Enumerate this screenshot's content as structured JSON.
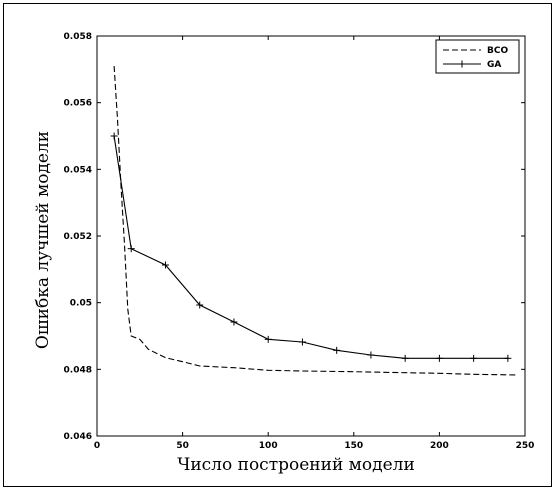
{
  "chart_data": {
    "type": "line",
    "title": "",
    "xlabel": "Число построений модели",
    "ylabel": "Ошибка лучшей модели",
    "xlim": [
      0,
      250
    ],
    "ylim": [
      0.046,
      0.058
    ],
    "xticks": [
      0,
      50,
      100,
      150,
      200,
      250
    ],
    "xtick_labels": [
      "0",
      "50",
      "100",
      "150",
      "200",
      "250"
    ],
    "yticks": [
      0.046,
      0.048,
      0.05,
      0.052,
      0.054,
      0.056,
      0.058
    ],
    "ytick_labels": [
      "0.046",
      "0.048",
      "0.05",
      "0.052",
      "0.054",
      "0.056",
      "0.058"
    ],
    "grid": false,
    "legend_position": "top-right",
    "series": [
      {
        "name": "BCO",
        "style": "dashed",
        "color": "#000000",
        "x": [
          10,
          12,
          14,
          16,
          18,
          20,
          25,
          30,
          40,
          50,
          60,
          80,
          100,
          120,
          150,
          180,
          200,
          220,
          245
        ],
        "y": [
          0.0571,
          0.0555,
          0.0535,
          0.0518,
          0.0498,
          0.049,
          0.0489,
          0.0486,
          0.04835,
          0.04823,
          0.0481,
          0.04805,
          0.04797,
          0.04795,
          0.04793,
          0.0479,
          0.04788,
          0.04785,
          0.04783
        ]
      },
      {
        "name": "GA",
        "style": "solid-plus",
        "color": "#000000",
        "x": [
          10,
          20,
          40,
          60,
          80,
          100,
          120,
          140,
          160,
          180,
          200,
          220,
          240
        ],
        "y": [
          0.055,
          0.05162,
          0.05113,
          0.04993,
          0.04942,
          0.0489,
          0.04882,
          0.04857,
          0.04843,
          0.04833,
          0.04833,
          0.04833,
          0.04833
        ]
      }
    ]
  }
}
